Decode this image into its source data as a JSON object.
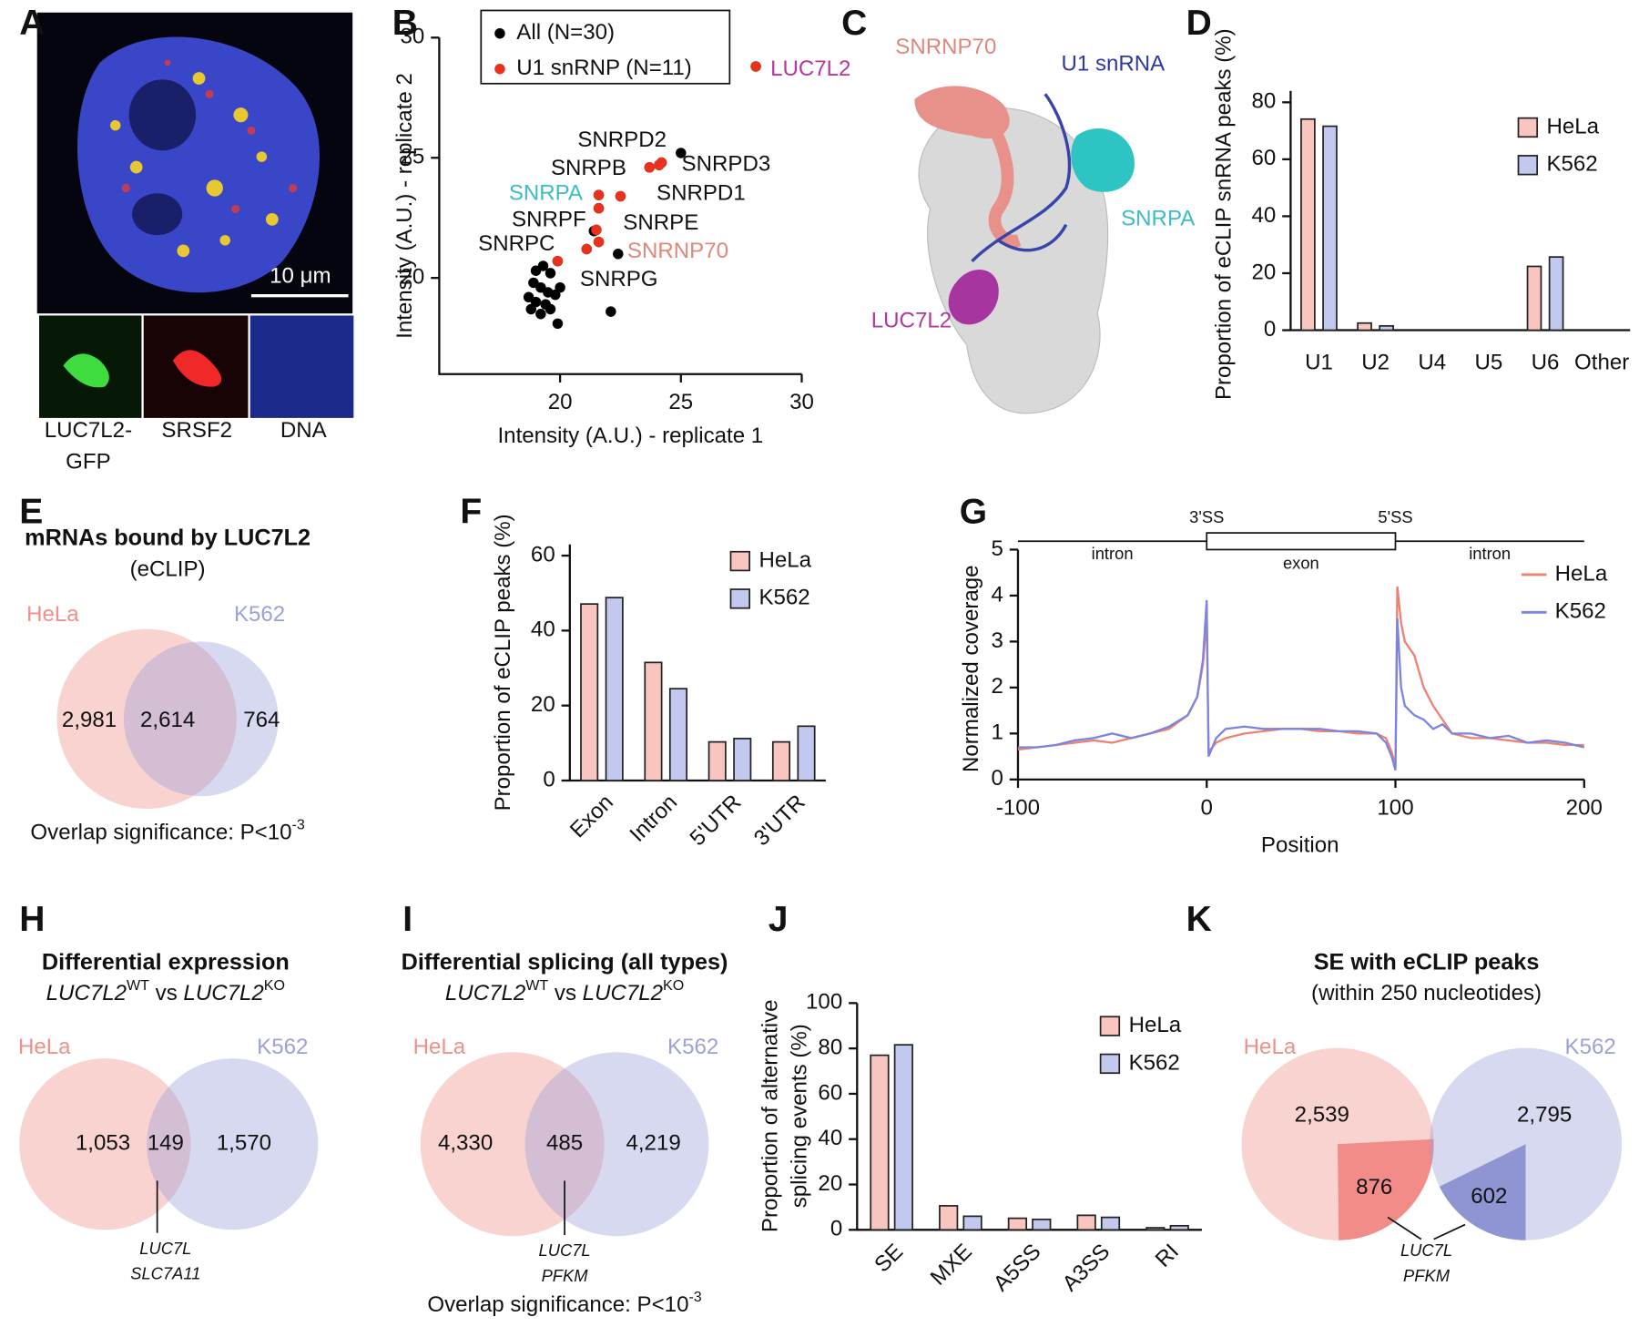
{
  "panels": [
    "A",
    "B",
    "C",
    "D",
    "E",
    "F",
    "G",
    "H",
    "I",
    "J",
    "K"
  ],
  "panel_a": {
    "scale_bar": "10 μm",
    "channels": [
      [
        "LUC7L2-",
        "GFP"
      ],
      [
        "SRSF2"
      ],
      [
        "DNA"
      ]
    ]
  },
  "panel_c": {
    "labels": [
      {
        "text": "SNRNP70",
        "color": "#e0877c"
      },
      {
        "text": "U1 snRNA",
        "color": "#2f3a9e"
      },
      {
        "text": "SNRPA",
        "color": "#3cbcc4"
      },
      {
        "text": "LUC7L2",
        "color": "#b0399f"
      }
    ]
  },
  "chart_data": [
    {
      "type": "scatter",
      "xlabel": "Intensity (A.U.) - replicate 1",
      "ylabel": "Intensity (A.U.) - replicate 2",
      "xlim": [
        15,
        30
      ],
      "ylim": [
        16,
        30
      ],
      "xticks": [
        20,
        25,
        30
      ],
      "yticks": [
        20,
        25,
        30
      ],
      "legend": "upper-left",
      "series": [
        {
          "name": "All (N=30)",
          "color": "#000000",
          "x": [
            25.0,
            22.4,
            21.4,
            22.1,
            19.9,
            19.0,
            19.3,
            19.6,
            18.9,
            19.2,
            19.5,
            18.7,
            19.0,
            19.4,
            19.8,
            18.8,
            19.2,
            19.6,
            20.0,
            28.1,
            23.7,
            24.1,
            24.2,
            22.5,
            21.6,
            21.6,
            21.5,
            21.6,
            21.1,
            19.9
          ],
          "values": [
            25.2,
            21.0,
            21.95,
            18.6,
            18.1,
            20.3,
            20.5,
            20.2,
            19.8,
            19.6,
            19.4,
            19.2,
            19.0,
            18.9,
            19.3,
            18.7,
            18.5,
            18.7,
            19.6,
            28.8,
            24.6,
            24.7,
            24.8,
            23.4,
            23.45,
            22.9,
            22.0,
            21.5,
            21.2,
            20.7
          ]
        },
        {
          "name": "U1 snRNP (N=11)",
          "color": "#e8321e",
          "x": [
            28.1,
            23.7,
            24.1,
            24.2,
            22.5,
            21.6,
            21.6,
            21.5,
            21.6,
            21.1,
            19.9
          ],
          "values": [
            28.8,
            24.6,
            24.7,
            24.8,
            23.4,
            23.45,
            22.9,
            22.0,
            21.5,
            21.2,
            20.7
          ]
        }
      ],
      "annotations": [
        {
          "text": "SNRPD2",
          "color": "#111111"
        },
        {
          "text": "SNRPB",
          "color": "#111111"
        },
        {
          "text": "SNRPD3",
          "color": "#111111"
        },
        {
          "text": "SNRPA",
          "color": "#3cbcc4"
        },
        {
          "text": "SNRPD1",
          "color": "#111111"
        },
        {
          "text": "SNRPF",
          "color": "#111111"
        },
        {
          "text": "SNRPE",
          "color": "#111111"
        },
        {
          "text": "SNRPC",
          "color": "#111111"
        },
        {
          "text": "SNRNP70",
          "color": "#e0877c"
        },
        {
          "text": "SNRPG",
          "color": "#111111"
        },
        {
          "text": "LUC7L2",
          "color": "#b8379c"
        }
      ]
    },
    {
      "type": "bar",
      "ylabel": "Proportion of eCLIP snRNA peaks (%)",
      "categories": [
        "U1",
        "U2",
        "U4",
        "U5",
        "U6",
        "Other"
      ],
      "ylim": [
        0,
        84
      ],
      "yticks": [
        0,
        20,
        40,
        60,
        80
      ],
      "legend": "upper-right",
      "edge_color": "#222222",
      "series": [
        {
          "name": "HeLa",
          "color": "#f8c5bf",
          "values": [
            74.1,
            2.5,
            0,
            0,
            22.4,
            0
          ]
        },
        {
          "name": "K562",
          "color": "#c3c8ee",
          "values": [
            71.6,
            1.5,
            0,
            0,
            25.7,
            0
          ]
        }
      ]
    },
    {
      "type": "bar",
      "ylabel": "Proportion of eCLIP peaks (%)",
      "categories": [
        "Exon",
        "Intron",
        "5'UTR",
        "3'UTR"
      ],
      "ylim": [
        0,
        63
      ],
      "yticks": [
        0,
        20,
        40,
        60
      ],
      "legend": "upper-right",
      "edge_color": "#222222",
      "series": [
        {
          "name": "HeLa",
          "color": "#f8c5bf",
          "values": [
            47.1,
            31.5,
            10.3,
            10.3
          ]
        },
        {
          "name": "K562",
          "color": "#c3c8ee",
          "values": [
            48.8,
            24.5,
            11.2,
            14.5
          ]
        }
      ]
    },
    {
      "type": "line",
      "xlabel": "Position",
      "ylabel": "Normalized coverage",
      "xlim": [
        -100,
        200
      ],
      "xticks": [
        -100,
        0,
        100,
        200
      ],
      "ylim": [
        0,
        5
      ],
      "yticks": [
        0,
        1,
        2,
        3,
        4,
        5
      ],
      "legend": "upper-right",
      "gene_model": [
        "intron",
        "3'SS",
        "exon",
        "5'SS",
        "intron"
      ],
      "x": [
        -100,
        -90,
        -80,
        -70,
        -60,
        -50,
        -40,
        -30,
        -20,
        -10,
        -5,
        -2,
        0,
        1,
        5,
        10,
        20,
        30,
        40,
        50,
        60,
        70,
        80,
        90,
        95,
        98,
        100,
        101,
        103,
        105,
        110,
        115,
        120,
        125,
        130,
        140,
        150,
        160,
        170,
        180,
        190,
        200
      ],
      "series": [
        {
          "name": "HeLa",
          "color": "#f08070",
          "values": [
            0.65,
            0.7,
            0.75,
            0.8,
            0.85,
            0.8,
            0.9,
            1.0,
            1.1,
            1.4,
            1.8,
            2.5,
            3.5,
            0.6,
            0.8,
            0.9,
            1.0,
            1.05,
            1.1,
            1.1,
            1.05,
            1.05,
            1.0,
            1.0,
            0.9,
            0.6,
            0.3,
            4.2,
            3.4,
            3.0,
            2.7,
            2.0,
            1.6,
            1.3,
            1.0,
            0.9,
            0.9,
            0.85,
            0.8,
            0.8,
            0.75,
            0.75
          ]
        },
        {
          "name": "K562",
          "color": "#7b85e0",
          "values": [
            0.7,
            0.7,
            0.75,
            0.85,
            0.9,
            1.0,
            0.9,
            1.0,
            1.15,
            1.4,
            1.8,
            2.6,
            3.9,
            0.5,
            0.9,
            1.1,
            1.15,
            1.1,
            1.1,
            1.1,
            1.1,
            1.05,
            1.05,
            1.0,
            0.8,
            0.5,
            0.2,
            3.5,
            2.0,
            1.6,
            1.4,
            1.3,
            1.1,
            1.2,
            1.0,
            1.0,
            0.9,
            0.95,
            0.8,
            0.85,
            0.8,
            0.7
          ]
        }
      ]
    },
    {
      "type": "bar",
      "ylabel": [
        "Proportion of alternative",
        "splicing events (%)"
      ],
      "categories": [
        "SE",
        "MXE",
        "A5SS",
        "A3SS",
        "RI"
      ],
      "ylim": [
        0,
        100
      ],
      "yticks": [
        0,
        20,
        40,
        60,
        80,
        100
      ],
      "legend": "upper-right",
      "edge_color": "#222222",
      "series": [
        {
          "name": "HeLa",
          "color": "#f8c5bf",
          "values": [
            77.0,
            10.6,
            5.1,
            6.4,
            0.9
          ]
        },
        {
          "name": "K562",
          "color": "#c3c8ee",
          "values": [
            81.6,
            6.0,
            4.6,
            5.5,
            1.8
          ]
        }
      ]
    }
  ],
  "venns": [
    {
      "type": "venn",
      "title": "mRNAs bound by LUC7L2",
      "subtitle": [
        {
          "text": "(eCLIP)"
        }
      ],
      "sets": [
        {
          "name": "HeLa",
          "color": "#f0908a"
        },
        {
          "name": "K562",
          "color": "#9ca1d9"
        }
      ],
      "counts": [
        "2,981",
        "2,614",
        "764"
      ],
      "footer": [
        {
          "text": "Overlap significance: P<10"
        },
        {
          "text": "-3",
          "style": "sup"
        }
      ]
    },
    {
      "type": "venn",
      "title": "Differential expression",
      "subtitle": [
        {
          "text": "LUC7L2",
          "style": "italic"
        },
        {
          "text": "WT",
          "style": "sup"
        },
        {
          "text": " vs "
        },
        {
          "text": "LUC7L2",
          "style": "italic"
        },
        {
          "text": "KO",
          "style": "sup"
        }
      ],
      "sets": [
        {
          "name": "HeLa",
          "color": "#f0908a"
        },
        {
          "name": "K562",
          "color": "#9ca1d9"
        }
      ],
      "counts": [
        "1,053",
        "149",
        "1,570"
      ],
      "callout": [
        "LUC7L",
        "SLC7A11"
      ]
    },
    {
      "type": "venn",
      "title": "Differential splicing (all types)",
      "subtitle": [
        {
          "text": "LUC7L2",
          "style": "italic"
        },
        {
          "text": "WT",
          "style": "sup"
        },
        {
          "text": " vs "
        },
        {
          "text": "LUC7L2",
          "style": "italic"
        },
        {
          "text": "KO",
          "style": "sup"
        }
      ],
      "sets": [
        {
          "name": "HeLa",
          "color": "#f0908a"
        },
        {
          "name": "K562",
          "color": "#9ca1d9"
        }
      ],
      "counts": [
        "4,330",
        "485",
        "4,219"
      ],
      "callout": [
        "LUC7L",
        "PFKM"
      ],
      "footer": [
        {
          "text": "Overlap significance: P<10"
        },
        {
          "text": "-3",
          "style": "sup"
        }
      ]
    },
    {
      "type": "split-circles",
      "title": "SE with eCLIP peaks",
      "subtitle": [
        {
          "text": "(within 250 nucleotides)"
        }
      ],
      "sets": [
        {
          "name": "HeLa",
          "color": "#f0908a",
          "wedge_color": "#f07f7c",
          "counts": [
            "2,539",
            "876"
          ]
        },
        {
          "name": "K562",
          "color": "#9ca1d9",
          "wedge_color": "#8288cc",
          "counts": [
            "2,795",
            "602"
          ]
        }
      ],
      "callout": [
        "LUC7L",
        "PFKM"
      ]
    }
  ]
}
